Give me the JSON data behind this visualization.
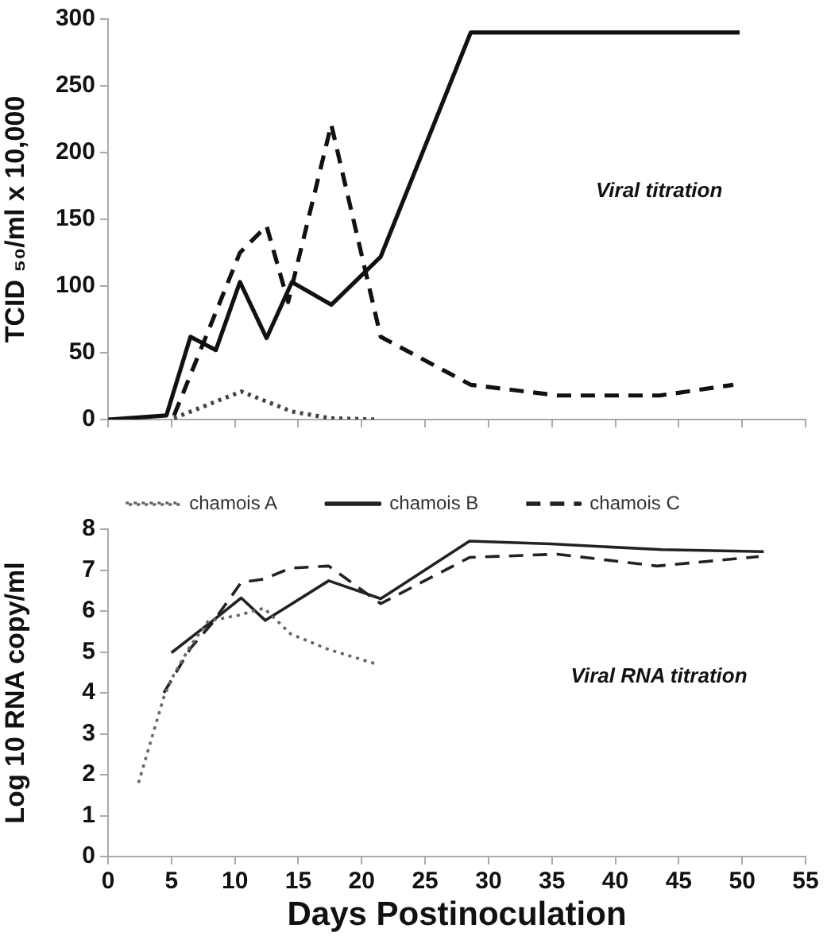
{
  "chart_data": [
    {
      "type": "line",
      "ylabel": "TCID ₅₀/ml x 10,000",
      "xlim": [
        0,
        55
      ],
      "xticks": [
        0,
        5,
        10,
        15,
        20,
        25,
        30,
        35,
        40,
        45,
        50,
        55
      ],
      "ylim": [
        0,
        300
      ],
      "yticks": [
        0,
        50,
        100,
        150,
        200,
        250,
        300
      ],
      "tick_labels": "y",
      "grid": false,
      "legend": false,
      "marker": "none",
      "annotations": [
        "Viral titration"
      ],
      "series": [
        {
          "color": "#444444",
          "line_style": "dotted",
          "x": [
            5.2,
            10.5,
            14.5,
            17.5,
            21.3
          ],
          "values": [
            1,
            21,
            6,
            1,
            0
          ]
        },
        {
          "color": "#111111",
          "line_style": "solid",
          "x": [
            0,
            4.6,
            6.5,
            8.5,
            10.4,
            12.5,
            14.5,
            17.6,
            21.5,
            28.6,
            49.8
          ],
          "values": [
            0,
            3,
            62,
            52,
            103,
            61,
            103,
            86,
            122,
            290,
            290
          ]
        },
        {
          "color": "#111111",
          "line_style": "dashed",
          "x": [
            5.2,
            10.4,
            12.5,
            14.2,
            17.6,
            21.5,
            28.6,
            35.5,
            43.5,
            49.3
          ],
          "values": [
            3,
            125,
            145,
            88,
            221,
            62,
            26,
            18,
            18,
            26
          ]
        }
      ]
    },
    {
      "type": "line",
      "xlabel": "Days Postinoculation",
      "ylabel": "Log 10 RNA copy/ml",
      "xlim": [
        0,
        55
      ],
      "xticks": [
        0,
        5,
        10,
        15,
        20,
        25,
        30,
        35,
        40,
        45,
        50,
        55
      ],
      "ylim": [
        0,
        8
      ],
      "yticks": [
        0,
        1,
        2,
        3,
        4,
        5,
        6,
        7,
        8
      ],
      "grid": false,
      "legend": "top",
      "marker": "none",
      "annotations": [
        "Viral RNA titration"
      ],
      "series": [
        {
          "name": "chamois A",
          "color": "#666666",
          "line_style": "dotted",
          "x": [
            2.4,
            4.4,
            5.2,
            6.5,
            7.9,
            10.3,
            12.3,
            14.4,
            17.4,
            21.3
          ],
          "values": [
            1.8,
            3.9,
            4.45,
            5.15,
            5.75,
            5.9,
            6.07,
            5.44,
            5.06,
            4.69
          ]
        },
        {
          "name": "chamois B",
          "color": "#222222",
          "line_style": "solid",
          "x": [
            5,
            8.2,
            10.5,
            12.4,
            17.4,
            21.5,
            28.5,
            34.9,
            43.7,
            51.7
          ],
          "values": [
            4.98,
            5.75,
            6.32,
            5.77,
            6.74,
            6.3,
            7.71,
            7.64,
            7.5,
            7.45
          ]
        },
        {
          "name": "chamois C",
          "color": "#222222",
          "line_style": "dashed",
          "x": [
            4.4,
            6.5,
            8.2,
            10.5,
            12.3,
            14.4,
            17.4,
            21.5,
            28.5,
            35.4,
            43.3,
            51.3
          ],
          "values": [
            4,
            5.09,
            5.7,
            6.7,
            6.78,
            7.05,
            7.1,
            6.18,
            7.31,
            7.39,
            7.1,
            7.33
          ]
        }
      ]
    }
  ]
}
